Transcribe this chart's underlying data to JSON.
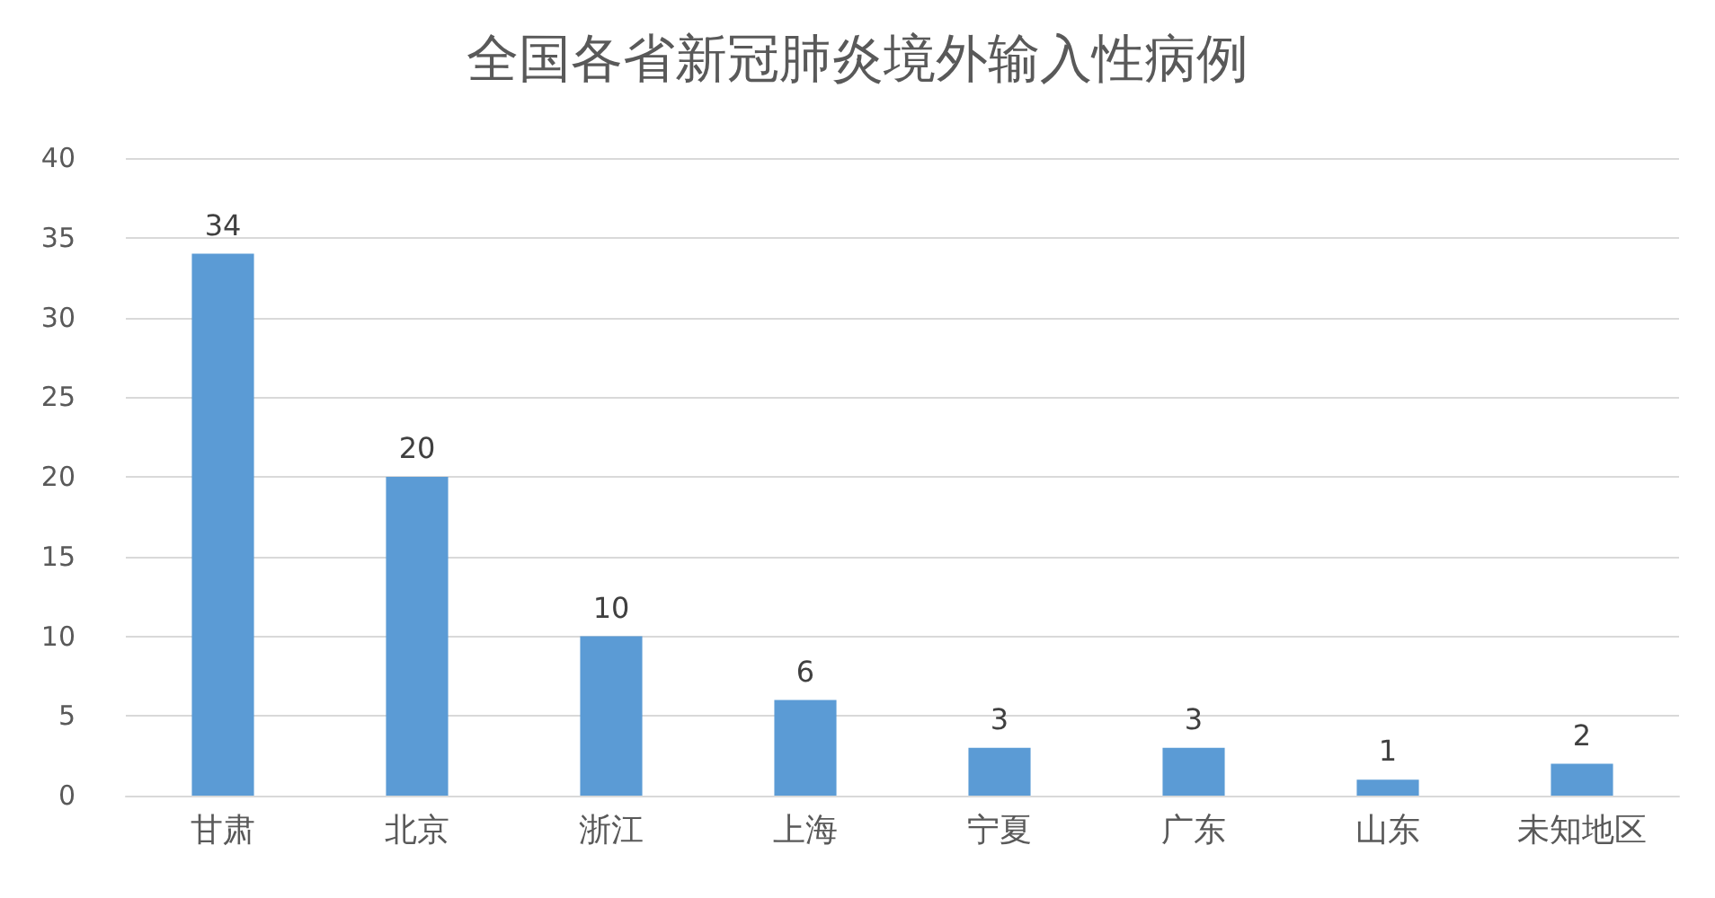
{
  "chart_data": {
    "type": "bar",
    "title": "全国各省新冠肺炎境外输入性病例",
    "categories": [
      "甘肃",
      "北京",
      "浙江",
      "上海",
      "宁夏",
      "广东",
      "山东",
      "未知地区"
    ],
    "values": [
      34,
      20,
      10,
      6,
      3,
      3,
      1,
      2
    ],
    "color": "#5b9bd5",
    "ylim": [
      0,
      40
    ],
    "yticks": [
      0,
      5,
      10,
      15,
      20,
      25,
      30,
      35,
      40
    ],
    "grid": "y",
    "data_labels": true
  }
}
